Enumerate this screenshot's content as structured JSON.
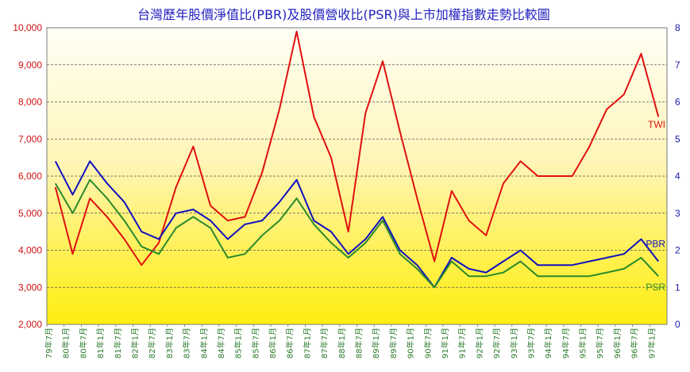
{
  "chart_data": {
    "type": "line",
    "title": "台灣歷年股價淨值比(PBR)及股價營收比(PSR)與上市加權指數走勢比較圖",
    "left_axis": {
      "ylim": [
        2000,
        10000
      ],
      "ticks": [
        "10,000",
        "9,000",
        "8,000",
        "7,000",
        "6,000",
        "5,000",
        "4,000",
        "3,000",
        "2,000"
      ]
    },
    "right_axis": {
      "ylim": [
        0,
        8
      ],
      "ticks": [
        "8",
        "7",
        "6",
        "5",
        "4",
        "3",
        "2",
        "1",
        "0"
      ]
    },
    "x_ticks": [
      "79年7月",
      "80年1月",
      "80年7月",
      "81年1月",
      "81年7月",
      "82年1月",
      "82年7月",
      "83年1月",
      "83年7月",
      "84年1月",
      "84年7月",
      "85年1月",
      "85年7月",
      "86年1月",
      "86年7月",
      "87年1月",
      "87年7月",
      "88年1月",
      "88年7月",
      "89年1月",
      "89年7月",
      "90年1月",
      "90年7月",
      "91年1月",
      "91年7月",
      "92年1月",
      "92年7月",
      "93年1月",
      "93年7月",
      "94年1月",
      "94年7月",
      "95年1月",
      "95年7月",
      "96年1月",
      "96年7月",
      "97年1月"
    ],
    "grid": true,
    "series": [
      {
        "name": "TWI",
        "axis": "left",
        "color": "#e01010",
        "x": [
          0,
          1,
          2,
          3,
          4,
          5,
          6,
          7,
          8,
          9,
          10,
          11,
          12,
          13,
          14,
          15,
          16,
          17,
          18,
          19,
          20,
          21,
          22,
          23,
          24,
          25,
          26,
          27,
          28,
          29,
          30,
          31,
          32,
          33,
          34,
          35
        ],
        "values": [
          5700,
          3900,
          5400,
          4900,
          4300,
          3600,
          4200,
          5700,
          6800,
          5200,
          4800,
          4900,
          6100,
          7800,
          9900,
          7600,
          6500,
          4500,
          7700,
          9100,
          7200,
          5400,
          3700,
          5600,
          4800,
          4400,
          5800,
          6400,
          6000,
          6000,
          6000,
          6800,
          7800,
          8200,
          9300,
          7600
        ]
      },
      {
        "name": "PBR",
        "axis": "right",
        "color": "#1010c0",
        "x": [
          0,
          1,
          2,
          3,
          4,
          5,
          6,
          7,
          8,
          9,
          10,
          11,
          12,
          13,
          14,
          15,
          16,
          17,
          18,
          19,
          20,
          21,
          22,
          23,
          24,
          25,
          26,
          27,
          28,
          29,
          30,
          31,
          32,
          33,
          34,
          35
        ],
        "values": [
          4.4,
          3.5,
          4.4,
          3.8,
          3.3,
          2.5,
          2.3,
          3.0,
          3.1,
          2.8,
          2.3,
          2.7,
          2.8,
          3.3,
          3.9,
          2.8,
          2.5,
          1.9,
          2.3,
          2.9,
          2.0,
          1.6,
          1.0,
          1.8,
          1.5,
          1.4,
          1.7,
          2.0,
          1.6,
          1.6,
          1.6,
          1.7,
          1.8,
          1.9,
          2.3,
          1.7
        ]
      },
      {
        "name": "PSR",
        "axis": "right",
        "color": "#2a8a2a",
        "x": [
          0,
          1,
          2,
          3,
          4,
          5,
          6,
          7,
          8,
          9,
          10,
          11,
          12,
          13,
          14,
          15,
          16,
          17,
          18,
          19,
          20,
          21,
          22,
          23,
          24,
          25,
          26,
          27,
          28,
          29,
          30,
          31,
          32,
          33,
          34,
          35
        ],
        "values": [
          3.8,
          3.0,
          3.9,
          3.4,
          2.8,
          2.1,
          1.9,
          2.6,
          2.9,
          2.6,
          1.8,
          1.9,
          2.4,
          2.8,
          3.4,
          2.7,
          2.2,
          1.8,
          2.2,
          2.8,
          1.9,
          1.5,
          1.0,
          1.7,
          1.3,
          1.3,
          1.4,
          1.7,
          1.3,
          1.3,
          1.3,
          1.3,
          1.4,
          1.5,
          1.8,
          1.3
        ]
      }
    ]
  }
}
